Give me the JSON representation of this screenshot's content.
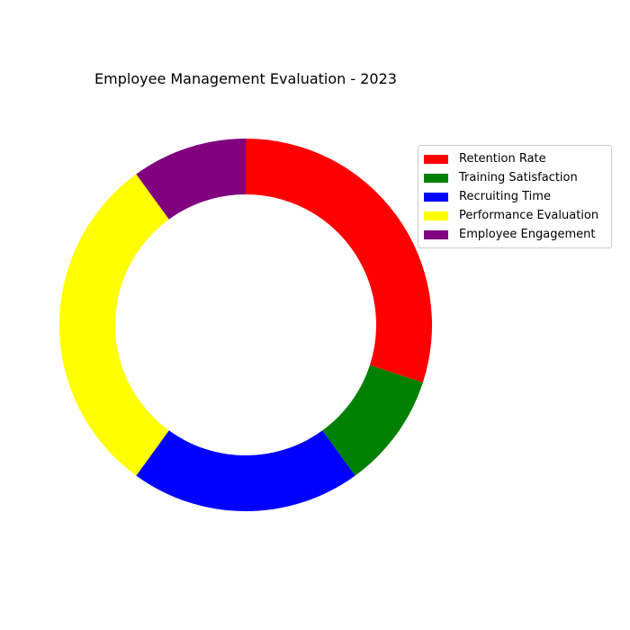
{
  "chart_data": {
    "type": "pie",
    "title": "Employee Management Evaluation - 2023",
    "donut": true,
    "start_angle_deg": 90,
    "direction": "clockwise",
    "legend_position": "upper-right",
    "slices": [
      {
        "label": "Retention Rate",
        "value": 30,
        "color": "#ff0000"
      },
      {
        "label": "Training Satisfaction",
        "value": 10,
        "color": "#008000"
      },
      {
        "label": "Recruiting Time",
        "value": 20,
        "color": "#0000ff"
      },
      {
        "label": "Performance Evaluation",
        "value": 30,
        "color": "#ffff00"
      },
      {
        "label": "Employee Engagement",
        "value": 10,
        "color": "#800080"
      }
    ]
  }
}
